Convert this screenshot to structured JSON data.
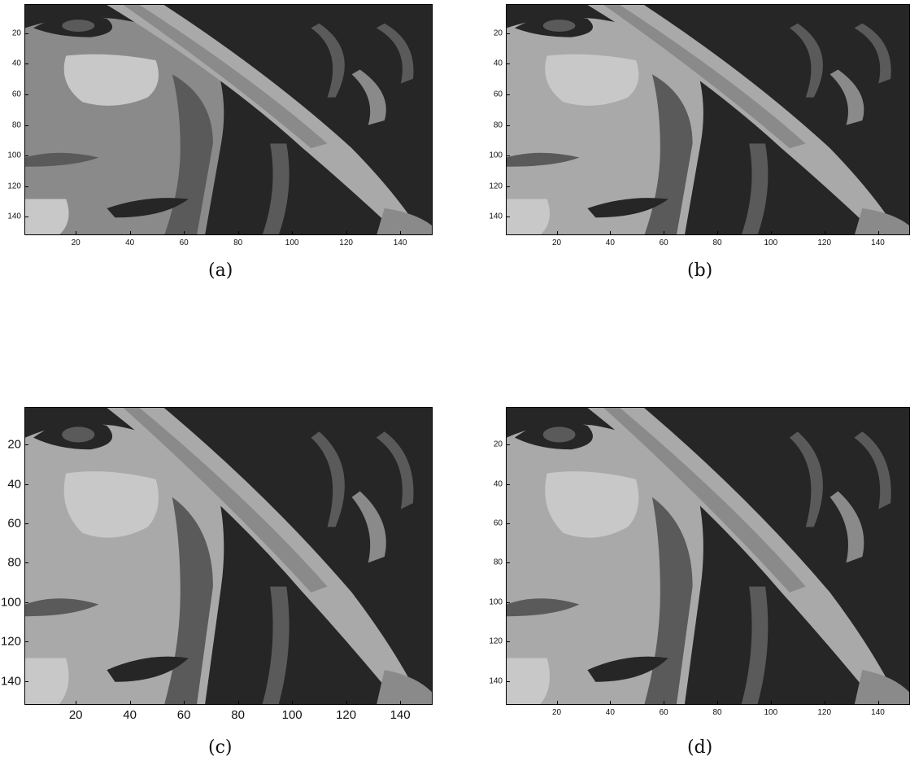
{
  "figure": {
    "panels": [
      {
        "id": "a",
        "caption": "(a)",
        "x_ticks": [
          "20",
          "40",
          "60",
          "80",
          "100",
          "120",
          "140"
        ],
        "y_ticks": [
          "20",
          "40",
          "60",
          "80",
          "100",
          "120",
          "140"
        ],
        "tick_size": "small",
        "levels": 4
      },
      {
        "id": "b",
        "caption": "(b)",
        "x_ticks": [
          "20",
          "40",
          "60",
          "80",
          "100",
          "120",
          "140"
        ],
        "y_ticks": [
          "20",
          "40",
          "60",
          "80",
          "100",
          "120",
          "140"
        ],
        "tick_size": "small",
        "levels": 5
      },
      {
        "id": "c",
        "caption": "(c)",
        "x_ticks": [
          "20",
          "40",
          "60",
          "80",
          "100",
          "120",
          "140"
        ],
        "y_ticks": [
          "20",
          "40",
          "60",
          "80",
          "100",
          "120",
          "140"
        ],
        "tick_size": "large",
        "levels": 4
      },
      {
        "id": "d",
        "caption": "(d)",
        "x_ticks": [
          "20",
          "40",
          "60",
          "80",
          "100",
          "120",
          "140"
        ],
        "y_ticks": [
          "20",
          "40",
          "60",
          "80",
          "100",
          "120",
          "140"
        ],
        "tick_size": "small",
        "levels": 5
      }
    ],
    "axis_range": {
      "x": [
        1,
        152
      ],
      "y": [
        1,
        152
      ]
    },
    "image_description_kind": "segmented grayscale portrait crop",
    "palette": [
      "#262626",
      "#5a5a5a",
      "#8a8a8a",
      "#a9a9a9",
      "#c8c8c8"
    ]
  }
}
